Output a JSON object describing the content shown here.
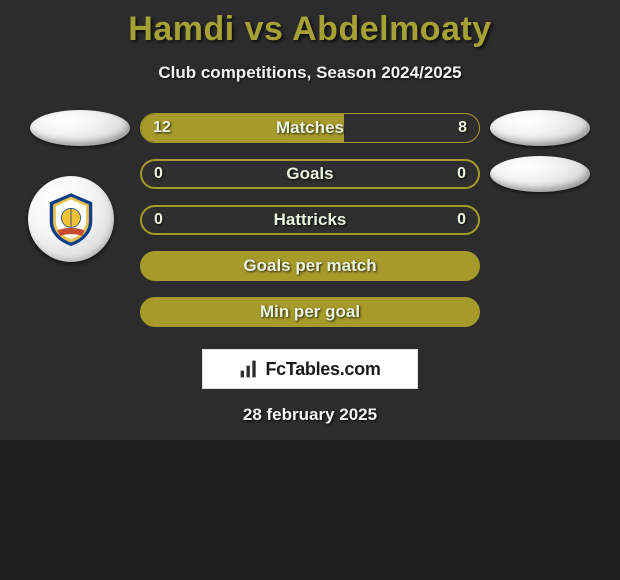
{
  "title": "Hamdi vs Abdelmoaty",
  "subtitle": "Club competitions, Season 2024/2025",
  "date": "28 february 2025",
  "logo_text": "FcTables.com",
  "colors": {
    "background": "#2c2c2c",
    "page_background": "#1e1e1e",
    "title_color": "#a7a035",
    "text_color": "#ecf3de",
    "pill_fill": "#a69a2b",
    "pill_empty": "#2f2f2f",
    "pill_border": "#a69a2b",
    "oval_light": "#f0f0f0"
  },
  "stat_rows": [
    {
      "label": "Matches",
      "left": "12",
      "right": "8",
      "left_pct": 60,
      "show_values": true,
      "left_oval": true,
      "right_oval": true
    },
    {
      "label": "Goals",
      "left": "0",
      "right": "0",
      "left_pct": 0,
      "show_values": true,
      "left_oval": false,
      "right_oval": true
    },
    {
      "label": "Hattricks",
      "left": "0",
      "right": "0",
      "left_pct": 0,
      "show_values": true,
      "left_oval": false,
      "right_oval": false
    },
    {
      "label": "Goals per match",
      "left": "",
      "right": "",
      "left_pct": 100,
      "show_values": false,
      "left_oval": false,
      "right_oval": false
    },
    {
      "label": "Min per goal",
      "left": "",
      "right": "",
      "left_pct": 100,
      "show_values": false,
      "left_oval": false,
      "right_oval": false
    }
  ],
  "crest": {
    "outer": "#0b3e8a",
    "gold": "#e6c24a",
    "inner": "#ffffff",
    "globe": "#f2c335",
    "ribbon": "#c84a2f"
  },
  "logo_bar_fill": "#2d2d2d"
}
